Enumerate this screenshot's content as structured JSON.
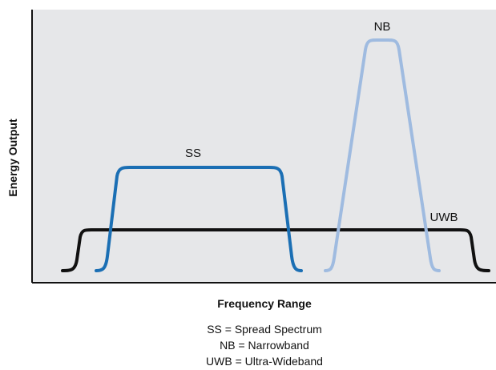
{
  "diagram": {
    "y_axis_label": "Energy Output",
    "x_axis_label": "Frequency Range",
    "curves": {
      "ss": {
        "label": "SS",
        "color": "#1b6fb4"
      },
      "nb": {
        "label": "NB",
        "color": "#9fbbe0"
      },
      "uwb": {
        "label": "UWB",
        "color": "#111111"
      }
    },
    "legend": [
      "SS = Spread Spectrum",
      "NB = Narrowband",
      "UWB = Ultra-Wideband"
    ],
    "colors": {
      "plot_background": "#e6e7e9",
      "axis": "#111111"
    }
  }
}
